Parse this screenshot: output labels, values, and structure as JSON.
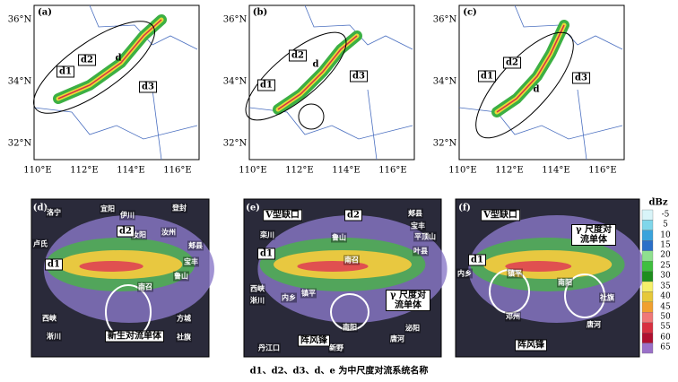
{
  "axes": {
    "yticks": [
      "36°N",
      "34°N",
      "32°N"
    ],
    "xticks": [
      "110°E",
      "112°E",
      "114°E",
      "116°E"
    ]
  },
  "top_panels": [
    {
      "label": "(a)",
      "annotations": [
        "d1",
        "d2",
        "d",
        "d3"
      ]
    },
    {
      "label": "(b)",
      "annotations": [
        "d2",
        "d",
        "d1",
        "d3"
      ]
    },
    {
      "label": "(c)",
      "annotations": [
        "d2",
        "d3",
        "d1",
        "d"
      ]
    }
  ],
  "bottom_panels": [
    {
      "label": "(d)",
      "places": [
        "洛宁",
        "宜阳",
        "伊川",
        "登封",
        "卢氏",
        "汝阳",
        "汝州",
        "郏县",
        "宝丰",
        "鲁山",
        "南召",
        "西峡",
        "淅川",
        "方城",
        "社旗"
      ],
      "callouts": [
        "d1",
        "d2",
        "新生对流单体"
      ]
    },
    {
      "label": "(e)",
      "places": [
        "郏县",
        "宝丰",
        "平顶山",
        "叶县",
        "鲁山",
        "栾川",
        "西峡",
        "淅川",
        "内乡",
        "镇平",
        "南召",
        "南阳",
        "唐河",
        "泌阳",
        "新野",
        "丹江口"
      ],
      "callouts": [
        "V型缺口",
        "d2",
        "d1",
        "γ 尺度对流单体",
        "阵风锋"
      ]
    },
    {
      "label": "(f)",
      "places": [
        "内乡",
        "镇平",
        "南阳",
        "社旗",
        "邓州",
        "唐河"
      ],
      "callouts": [
        "V型缺口",
        "γ 尺度对流单体",
        "d1",
        "阵风锋"
      ]
    }
  ],
  "colorbar": {
    "title": "dBz",
    "labels": [
      "-5",
      "5",
      "10",
      "15",
      "20",
      "25",
      "30",
      "35",
      "40",
      "45",
      "50",
      "55",
      "60",
      "65"
    ],
    "colors": [
      "#d8f4f8",
      "#7fd6ea",
      "#3aa3dc",
      "#2a6fc8",
      "#8fe08f",
      "#3fbf3f",
      "#1e8e1e",
      "#f5f06a",
      "#e6c83a",
      "#f0a030",
      "#f07878",
      "#d83040",
      "#b01030",
      "#9a70c8"
    ]
  },
  "caption": "d1、d2、d3、d、e 为中尺度对流系统名称"
}
